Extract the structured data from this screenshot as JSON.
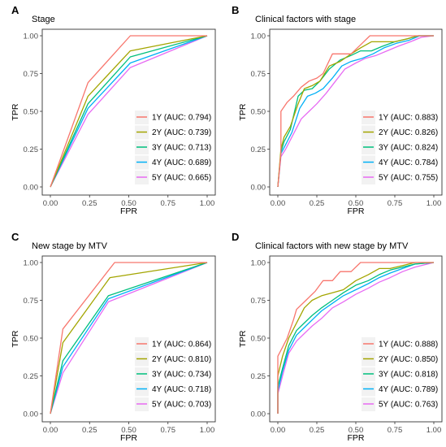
{
  "chart_data": [
    {
      "type": "line",
      "panel_letter": "A",
      "title": "Stage",
      "xlabel": "FPR",
      "ylabel": "TPR",
      "xlim": [
        0,
        1
      ],
      "ylim": [
        0,
        1
      ],
      "x_ticks": [
        "0.00",
        "0.25",
        "0.50",
        "0.75",
        "1.00"
      ],
      "y_ticks": [
        "0.00",
        "0.25",
        "0.50",
        "0.75",
        "1.00"
      ],
      "grid": false,
      "legend_position": "bottom-right",
      "series": [
        {
          "name": "1Y (AUC: 0.794)",
          "color": "#F8766D",
          "x": [
            0,
            0.24,
            0.51,
            1.0
          ],
          "y": [
            0,
            0.69,
            1.0,
            1.0
          ]
        },
        {
          "name": "2Y (AUC: 0.739)",
          "color": "#A3A500",
          "x": [
            0,
            0.24,
            0.51,
            1.0
          ],
          "y": [
            0,
            0.6,
            0.9,
            1.0
          ]
        },
        {
          "name": "3Y (AUC: 0.713)",
          "color": "#00BF7D",
          "x": [
            0,
            0.24,
            0.51,
            1.0
          ],
          "y": [
            0,
            0.55,
            0.86,
            1.0
          ]
        },
        {
          "name": "4Y (AUC: 0.689)",
          "color": "#00B0F6",
          "x": [
            0,
            0.24,
            0.51,
            1.0
          ],
          "y": [
            0,
            0.52,
            0.82,
            1.0
          ]
        },
        {
          "name": "5Y (AUC: 0.665)",
          "color": "#E76BF3",
          "x": [
            0,
            0.24,
            0.51,
            1.0
          ],
          "y": [
            0,
            0.48,
            0.79,
            1.0
          ]
        }
      ]
    },
    {
      "type": "line",
      "panel_letter": "B",
      "title": "Clinical factors with stage",
      "xlabel": "FPR",
      "ylabel": "TPR",
      "xlim": [
        0,
        1
      ],
      "ylim": [
        0,
        1
      ],
      "x_ticks": [
        "0.00",
        "0.25",
        "0.50",
        "0.75",
        "1.00"
      ],
      "y_ticks": [
        "0.00",
        "0.25",
        "0.50",
        "0.75",
        "1.00"
      ],
      "grid": false,
      "legend_position": "bottom-right",
      "series": [
        {
          "name": "1Y (AUC: 0.883)",
          "color": "#F8766D",
          "x": [
            0,
            0.02,
            0.02,
            0.06,
            0.1,
            0.15,
            0.2,
            0.25,
            0.29,
            0.35,
            0.41,
            0.47,
            0.53,
            0.59,
            0.65,
            0.76,
            0.88,
            1.0
          ],
          "y": [
            0,
            0.22,
            0.5,
            0.56,
            0.6,
            0.66,
            0.7,
            0.72,
            0.75,
            0.88,
            0.88,
            0.88,
            0.94,
            1.0,
            1.0,
            1.0,
            1.0,
            1.0
          ]
        },
        {
          "name": "2Y (AUC: 0.826)",
          "color": "#A3A500",
          "x": [
            0,
            0.02,
            0.04,
            0.08,
            0.13,
            0.17,
            0.22,
            0.27,
            0.33,
            0.4,
            0.47,
            0.53,
            0.6,
            0.67,
            0.75,
            0.83,
            0.9,
            1.0
          ],
          "y": [
            0,
            0.25,
            0.33,
            0.4,
            0.55,
            0.65,
            0.67,
            0.7,
            0.8,
            0.83,
            0.88,
            0.92,
            0.96,
            0.96,
            0.96,
            0.98,
            1.0,
            1.0
          ]
        },
        {
          "name": "3Y (AUC: 0.824)",
          "color": "#00BF7D",
          "x": [
            0,
            0.02,
            0.04,
            0.08,
            0.13,
            0.17,
            0.22,
            0.27,
            0.33,
            0.4,
            0.47,
            0.53,
            0.6,
            0.67,
            0.75,
            0.83,
            0.9,
            1.0
          ],
          "y": [
            0,
            0.23,
            0.3,
            0.38,
            0.6,
            0.64,
            0.65,
            0.7,
            0.78,
            0.84,
            0.87,
            0.9,
            0.9,
            0.93,
            0.96,
            0.98,
            1.0,
            1.0
          ]
        },
        {
          "name": "4Y (AUC: 0.784)",
          "color": "#00B0F6",
          "x": [
            0,
            0.02,
            0.05,
            0.09,
            0.14,
            0.19,
            0.24,
            0.29,
            0.35,
            0.41,
            0.47,
            0.54,
            0.61,
            0.68,
            0.76,
            0.84,
            0.91,
            1.0
          ],
          "y": [
            0,
            0.22,
            0.28,
            0.36,
            0.52,
            0.6,
            0.62,
            0.65,
            0.72,
            0.8,
            0.83,
            0.85,
            0.88,
            0.92,
            0.95,
            0.97,
            1.0,
            1.0
          ]
        },
        {
          "name": "5Y (AUC: 0.755)",
          "color": "#E76BF3",
          "x": [
            0,
            0.02,
            0.05,
            0.1,
            0.15,
            0.2,
            0.25,
            0.31,
            0.37,
            0.43,
            0.5,
            0.56,
            0.63,
            0.7,
            0.77,
            0.85,
            0.92,
            1.0
          ],
          "y": [
            0,
            0.2,
            0.25,
            0.35,
            0.45,
            0.5,
            0.55,
            0.62,
            0.7,
            0.78,
            0.82,
            0.85,
            0.87,
            0.9,
            0.93,
            0.96,
            0.99,
            1.0
          ]
        }
      ]
    },
    {
      "type": "line",
      "panel_letter": "C",
      "title": "New stage by MTV",
      "xlabel": "FPR",
      "ylabel": "TPR",
      "xlim": [
        0,
        1
      ],
      "ylim": [
        0,
        1
      ],
      "x_ticks": [
        "0.00",
        "0.25",
        "0.50",
        "0.75",
        "1.00"
      ],
      "y_ticks": [
        "0.00",
        "0.25",
        "0.50",
        "0.75",
        "1.00"
      ],
      "grid": false,
      "legend_position": "bottom-right",
      "series": [
        {
          "name": "1Y (AUC: 0.864)",
          "color": "#F8766D",
          "x": [
            0,
            0.08,
            0.41,
            1.0
          ],
          "y": [
            0,
            0.56,
            1.0,
            1.0
          ]
        },
        {
          "name": "2Y (AUC: 0.810)",
          "color": "#A3A500",
          "x": [
            0,
            0.08,
            0.38,
            1.0
          ],
          "y": [
            0,
            0.47,
            0.9,
            1.0
          ]
        },
        {
          "name": "3Y (AUC: 0.734)",
          "color": "#00BF7D",
          "x": [
            0,
            0.08,
            0.37,
            1.0
          ],
          "y": [
            0,
            0.35,
            0.78,
            1.0
          ]
        },
        {
          "name": "4Y (AUC: 0.718)",
          "color": "#00B0F6",
          "x": [
            0,
            0.08,
            0.37,
            1.0
          ],
          "y": [
            0,
            0.31,
            0.76,
            1.0
          ]
        },
        {
          "name": "5Y (AUC: 0.703)",
          "color": "#E76BF3",
          "x": [
            0,
            0.08,
            0.37,
            1.0
          ],
          "y": [
            0,
            0.27,
            0.74,
            1.0
          ]
        }
      ]
    },
    {
      "type": "line",
      "panel_letter": "D",
      "title": "Clinical factors with new stage by MTV",
      "xlabel": "FPR",
      "ylabel": "TPR",
      "xlim": [
        0,
        1
      ],
      "ylim": [
        0,
        1
      ],
      "x_ticks": [
        "0.00",
        "0.25",
        "0.50",
        "0.75",
        "1.00"
      ],
      "y_ticks": [
        "0.00",
        "0.25",
        "0.50",
        "0.75",
        "1.00"
      ],
      "grid": false,
      "legend_position": "bottom-right",
      "series": [
        {
          "name": "1Y (AUC: 0.888)",
          "color": "#F8766D",
          "x": [
            0,
            0.0,
            0.03,
            0.06,
            0.1,
            0.12,
            0.18,
            0.24,
            0.29,
            0.35,
            0.4,
            0.47,
            0.53,
            0.59,
            0.71,
            0.82,
            1.0
          ],
          "y": [
            0,
            0.38,
            0.44,
            0.5,
            0.62,
            0.69,
            0.75,
            0.81,
            0.88,
            0.88,
            0.94,
            0.94,
            1.0,
            1.0,
            1.0,
            1.0,
            1.0
          ]
        },
        {
          "name": "2Y (AUC: 0.850)",
          "color": "#A3A500",
          "x": [
            0,
            0.0,
            0.03,
            0.07,
            0.12,
            0.17,
            0.22,
            0.28,
            0.35,
            0.42,
            0.5,
            0.58,
            0.65,
            0.72,
            0.8,
            0.88,
            1.0
          ],
          "y": [
            0,
            0.25,
            0.38,
            0.5,
            0.6,
            0.7,
            0.75,
            0.78,
            0.8,
            0.82,
            0.88,
            0.92,
            0.96,
            0.96,
            0.98,
            1.0,
            1.0
          ]
        },
        {
          "name": "3Y (AUC: 0.818)",
          "color": "#00BF7D",
          "x": [
            0,
            0.0,
            0.03,
            0.07,
            0.12,
            0.17,
            0.22,
            0.28,
            0.35,
            0.42,
            0.5,
            0.58,
            0.65,
            0.72,
            0.8,
            0.88,
            1.0
          ],
          "y": [
            0,
            0.18,
            0.3,
            0.45,
            0.55,
            0.6,
            0.65,
            0.7,
            0.75,
            0.8,
            0.85,
            0.88,
            0.92,
            0.95,
            0.97,
            0.99,
            1.0
          ]
        },
        {
          "name": "4Y (AUC: 0.789)",
          "color": "#00B0F6",
          "x": [
            0,
            0.0,
            0.03,
            0.07,
            0.12,
            0.17,
            0.22,
            0.28,
            0.35,
            0.42,
            0.5,
            0.58,
            0.65,
            0.72,
            0.8,
            0.88,
            1.0
          ],
          "y": [
            0,
            0.15,
            0.28,
            0.42,
            0.52,
            0.57,
            0.62,
            0.68,
            0.73,
            0.78,
            0.82,
            0.86,
            0.9,
            0.93,
            0.96,
            0.99,
            1.0
          ]
        },
        {
          "name": "5Y (AUC: 0.763)",
          "color": "#E76BF3",
          "x": [
            0,
            0.0,
            0.03,
            0.07,
            0.12,
            0.17,
            0.22,
            0.28,
            0.35,
            0.42,
            0.5,
            0.58,
            0.65,
            0.72,
            0.8,
            0.88,
            1.0
          ],
          "y": [
            0,
            0.13,
            0.25,
            0.4,
            0.48,
            0.53,
            0.58,
            0.63,
            0.7,
            0.74,
            0.79,
            0.83,
            0.87,
            0.9,
            0.94,
            0.97,
            1.0
          ]
        }
      ]
    }
  ]
}
